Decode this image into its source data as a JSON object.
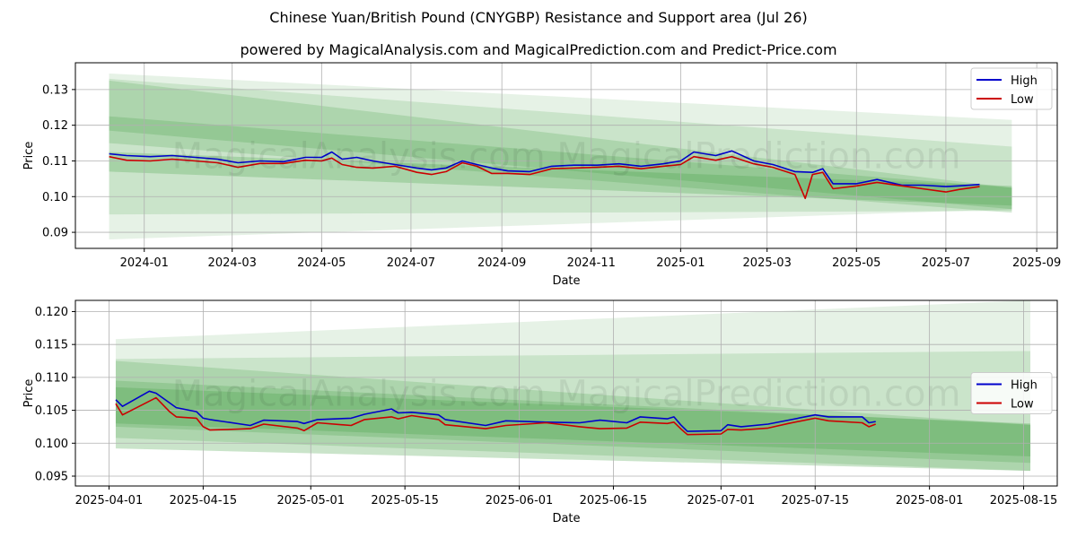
{
  "title": "Chinese Yuan/British Pound (CNYGBP) Resistance and Support area (Jul 26)",
  "subtitle": "powered by MagicalAnalysis.com and MagicalPrediction.com and Predict-Price.com",
  "watermarks": [
    "MagicalAnalysis.com",
    "MagicalPrediction.com"
  ],
  "colors": {
    "high": "#0000cc",
    "low": "#cc0000",
    "band": "#3a9a3a"
  },
  "chart_data": [
    {
      "type": "line",
      "xlabel": "Date",
      "ylabel": "Price",
      "xlim": [
        "2023-11-15",
        "2025-09-15"
      ],
      "ylim": [
        0.0855,
        0.1375
      ],
      "xticks": [
        {
          "date": "2024-01-01",
          "label": "2024-01"
        },
        {
          "date": "2024-03-01",
          "label": "2024-03"
        },
        {
          "date": "2024-05-01",
          "label": "2024-05"
        },
        {
          "date": "2024-07-01",
          "label": "2024-07"
        },
        {
          "date": "2024-09-01",
          "label": "2024-09"
        },
        {
          "date": "2024-11-01",
          "label": "2024-11"
        },
        {
          "date": "2025-01-01",
          "label": "2025-01"
        },
        {
          "date": "2025-03-01",
          "label": "2025-03"
        },
        {
          "date": "2025-05-01",
          "label": "2025-05"
        },
        {
          "date": "2025-07-01",
          "label": "2025-07"
        },
        {
          "date": "2025-09-01",
          "label": "2025-09"
        }
      ],
      "yticks": [
        {
          "value": 0.09,
          "label": "0.09"
        },
        {
          "value": 0.1,
          "label": "0.10"
        },
        {
          "value": 0.11,
          "label": "0.11"
        },
        {
          "value": 0.12,
          "label": "0.12"
        },
        {
          "value": 0.13,
          "label": "0.13"
        }
      ],
      "grid": true,
      "legend_position": "top-right",
      "bands": [
        {
          "x": [
            "2023-12-08",
            "2025-08-15"
          ],
          "upper": [
            0.1345,
            0.1215
          ],
          "lower": [
            0.088,
            0.0965
          ],
          "opacity": 0.13
        },
        {
          "x": [
            "2023-12-08",
            "2025-08-15"
          ],
          "upper": [
            0.133,
            0.114
          ],
          "lower": [
            0.095,
            0.096
          ],
          "opacity": 0.16
        },
        {
          "x": [
            "2023-12-08",
            "2025-08-15"
          ],
          "upper": [
            0.1325,
            0.1025
          ],
          "lower": [
            0.115,
            0.0955
          ],
          "opacity": 0.2
        },
        {
          "x": [
            "2023-12-08",
            "2025-08-15"
          ],
          "upper": [
            0.1225,
            0.1025
          ],
          "lower": [
            0.1185,
            0.0965
          ],
          "opacity": 0.22
        },
        {
          "x": [
            "2023-12-08",
            "2025-08-15"
          ],
          "upper": [
            0.1125,
            0.103
          ],
          "lower": [
            0.107,
            0.0975
          ],
          "opacity": 0.25
        }
      ],
      "series": [
        {
          "name": "High",
          "x": [
            "2023-12-08",
            "2023-12-20",
            "2024-01-05",
            "2024-01-20",
            "2024-02-05",
            "2024-02-20",
            "2024-03-05",
            "2024-03-20",
            "2024-04-05",
            "2024-04-20",
            "2024-05-01",
            "2024-05-08",
            "2024-05-15",
            "2024-05-25",
            "2024-06-05",
            "2024-06-20",
            "2024-07-05",
            "2024-07-15",
            "2024-07-25",
            "2024-08-05",
            "2024-08-15",
            "2024-08-25",
            "2024-09-05",
            "2024-09-20",
            "2024-10-05",
            "2024-10-20",
            "2024-11-05",
            "2024-11-20",
            "2024-12-05",
            "2024-12-20",
            "2025-01-01",
            "2025-01-10",
            "2025-01-25",
            "2025-02-05",
            "2025-02-20",
            "2025-03-05",
            "2025-03-20",
            "2025-04-01",
            "2025-04-08",
            "2025-04-15",
            "2025-05-01",
            "2025-05-15",
            "2025-06-01",
            "2025-06-15",
            "2025-07-01",
            "2025-07-10",
            "2025-07-24"
          ],
          "y": [
            0.112,
            0.1115,
            0.1112,
            0.1115,
            0.111,
            0.1105,
            0.1095,
            0.11,
            0.1098,
            0.111,
            0.111,
            0.1125,
            0.1105,
            0.111,
            0.11,
            0.109,
            0.108,
            0.1075,
            0.108,
            0.11,
            0.109,
            0.108,
            0.1072,
            0.107,
            0.1085,
            0.1088,
            0.1088,
            0.1092,
            0.1085,
            0.1092,
            0.11,
            0.1125,
            0.1115,
            0.1128,
            0.11,
            0.109,
            0.107,
            0.1068,
            0.1078,
            0.1036,
            0.1036,
            0.1048,
            0.1032,
            0.1032,
            0.1028,
            0.103,
            0.1034
          ]
        },
        {
          "name": "Low",
          "x": [
            "2023-12-08",
            "2023-12-20",
            "2024-01-05",
            "2024-01-20",
            "2024-02-05",
            "2024-02-20",
            "2024-03-05",
            "2024-03-20",
            "2024-04-05",
            "2024-04-20",
            "2024-05-01",
            "2024-05-08",
            "2024-05-15",
            "2024-05-25",
            "2024-06-05",
            "2024-06-20",
            "2024-07-05",
            "2024-07-15",
            "2024-07-25",
            "2024-08-05",
            "2024-08-15",
            "2024-08-25",
            "2024-09-05",
            "2024-09-20",
            "2024-10-05",
            "2024-10-20",
            "2024-11-05",
            "2024-11-20",
            "2024-12-05",
            "2024-12-20",
            "2025-01-01",
            "2025-01-10",
            "2025-01-25",
            "2025-02-05",
            "2025-02-20",
            "2025-03-05",
            "2025-03-20",
            "2025-03-27",
            "2025-04-01",
            "2025-04-08",
            "2025-04-15",
            "2025-05-01",
            "2025-05-15",
            "2025-06-01",
            "2025-06-15",
            "2025-07-01",
            "2025-07-10",
            "2025-07-24"
          ],
          "y": [
            0.1112,
            0.1102,
            0.11,
            0.1105,
            0.11,
            0.1095,
            0.1082,
            0.1093,
            0.1093,
            0.1102,
            0.11,
            0.1108,
            0.109,
            0.1082,
            0.108,
            0.1085,
            0.1068,
            0.1062,
            0.107,
            0.1095,
            0.1085,
            0.1065,
            0.1065,
            0.1062,
            0.1078,
            0.108,
            0.1082,
            0.1085,
            0.1078,
            0.1085,
            0.109,
            0.1112,
            0.1102,
            0.1112,
            0.1092,
            0.1082,
            0.1062,
            0.0995,
            0.1062,
            0.1068,
            0.1022,
            0.103,
            0.104,
            0.103,
            0.1022,
            0.1013,
            0.102,
            0.1028
          ]
        }
      ]
    },
    {
      "type": "line",
      "xlabel": "Date",
      "ylabel": "Price",
      "xlim": [
        "2025-03-27",
        "2025-08-20"
      ],
      "ylim": [
        0.0935,
        0.1217
      ],
      "xticks": [
        {
          "date": "2025-04-01",
          "label": "2025-04-01"
        },
        {
          "date": "2025-04-15",
          "label": "2025-04-15"
        },
        {
          "date": "2025-05-01",
          "label": "2025-05-01"
        },
        {
          "date": "2025-05-15",
          "label": "2025-05-15"
        },
        {
          "date": "2025-06-01",
          "label": "2025-06-01"
        },
        {
          "date": "2025-06-15",
          "label": "2025-06-15"
        },
        {
          "date": "2025-07-01",
          "label": "2025-07-01"
        },
        {
          "date": "2025-07-15",
          "label": "2025-07-15"
        },
        {
          "date": "2025-08-01",
          "label": "2025-08-01"
        },
        {
          "date": "2025-08-15",
          "label": "2025-08-15"
        }
      ],
      "yticks": [
        {
          "value": 0.095,
          "label": "0.095"
        },
        {
          "value": 0.1,
          "label": "0.100"
        },
        {
          "value": 0.105,
          "label": "0.105"
        },
        {
          "value": 0.11,
          "label": "0.110"
        },
        {
          "value": 0.115,
          "label": "0.115"
        },
        {
          "value": 0.12,
          "label": "0.120"
        }
      ],
      "grid": true,
      "legend_position": "center-right",
      "bands": [
        {
          "x": [
            "2025-04-02",
            "2025-08-16"
          ],
          "upper": [
            0.1158,
            0.1217
          ],
          "lower": [
            0.0992,
            0.0958
          ],
          "opacity": 0.13
        },
        {
          "x": [
            "2025-04-02",
            "2025-08-16"
          ],
          "upper": [
            0.1128,
            0.114
          ],
          "lower": [
            0.0992,
            0.0958
          ],
          "opacity": 0.16
        },
        {
          "x": [
            "2025-04-02",
            "2025-08-16"
          ],
          "upper": [
            0.1125,
            0.1028
          ],
          "lower": [
            0.1008,
            0.0958
          ],
          "opacity": 0.2
        },
        {
          "x": [
            "2025-04-02",
            "2025-08-16"
          ],
          "upper": [
            0.1095,
            0.1028
          ],
          "lower": [
            0.1025,
            0.097
          ],
          "opacity": 0.22
        },
        {
          "x": [
            "2025-04-02",
            "2025-08-16"
          ],
          "upper": [
            0.1085,
            0.103
          ],
          "lower": [
            0.103,
            0.098
          ],
          "opacity": 0.25
        }
      ],
      "series": [
        {
          "name": "High",
          "x": [
            "2025-04-02",
            "2025-04-03",
            "2025-04-07",
            "2025-04-08",
            "2025-04-11",
            "2025-04-14",
            "2025-04-15",
            "2025-04-16",
            "2025-04-22",
            "2025-04-24",
            "2025-04-29",
            "2025-04-30",
            "2025-05-02",
            "2025-05-07",
            "2025-05-09",
            "2025-05-13",
            "2025-05-14",
            "2025-05-16",
            "2025-05-20",
            "2025-05-21",
            "2025-05-27",
            "2025-05-30",
            "2025-06-05",
            "2025-06-10",
            "2025-06-13",
            "2025-06-17",
            "2025-06-19",
            "2025-06-23",
            "2025-06-24",
            "2025-06-25",
            "2025-06-26",
            "2025-07-01",
            "2025-07-02",
            "2025-07-04",
            "2025-07-08",
            "2025-07-11",
            "2025-07-15",
            "2025-07-17",
            "2025-07-22",
            "2025-07-23",
            "2025-07-24"
          ],
          "y": [
            0.1066,
            0.1056,
            0.1079,
            0.1076,
            0.1054,
            0.1048,
            0.1038,
            0.1036,
            0.1027,
            0.1035,
            0.1033,
            0.103,
            0.1036,
            0.1038,
            0.1044,
            0.1052,
            0.1046,
            0.1047,
            0.1043,
            0.1036,
            0.1027,
            0.1034,
            0.1032,
            0.1031,
            0.1035,
            0.1031,
            0.104,
            0.1037,
            0.104,
            0.1028,
            0.1018,
            0.1019,
            0.1028,
            0.1025,
            0.1029,
            0.1035,
            0.1043,
            0.104,
            0.104,
            0.1031,
            0.1033
          ]
        },
        {
          "name": "Low",
          "x": [
            "2025-04-02",
            "2025-04-03",
            "2025-04-08",
            "2025-04-10",
            "2025-04-11",
            "2025-04-14",
            "2025-04-15",
            "2025-04-16",
            "2025-04-22",
            "2025-04-24",
            "2025-04-29",
            "2025-04-30",
            "2025-05-02",
            "2025-05-07",
            "2025-05-09",
            "2025-05-13",
            "2025-05-14",
            "2025-05-16",
            "2025-05-20",
            "2025-05-21",
            "2025-05-27",
            "2025-05-30",
            "2025-06-05",
            "2025-06-10",
            "2025-06-13",
            "2025-06-17",
            "2025-06-19",
            "2025-06-23",
            "2025-06-24",
            "2025-06-25",
            "2025-06-26",
            "2025-07-01",
            "2025-07-02",
            "2025-07-04",
            "2025-07-08",
            "2025-07-11",
            "2025-07-15",
            "2025-07-17",
            "2025-07-22",
            "2025-07-23",
            "2025-07-24"
          ],
          "y": [
            0.106,
            0.1043,
            0.1069,
            0.1048,
            0.104,
            0.1038,
            0.1025,
            0.102,
            0.1022,
            0.1029,
            0.1023,
            0.1019,
            0.1031,
            0.1027,
            0.1036,
            0.104,
            0.1037,
            0.1042,
            0.1036,
            0.1028,
            0.1022,
            0.1027,
            0.1031,
            0.1025,
            0.1022,
            0.1023,
            0.1032,
            0.103,
            0.1032,
            0.1022,
            0.1013,
            0.1014,
            0.1021,
            0.102,
            0.1023,
            0.103,
            0.1038,
            0.1034,
            0.1031,
            0.1025,
            0.1029
          ]
        }
      ]
    }
  ]
}
